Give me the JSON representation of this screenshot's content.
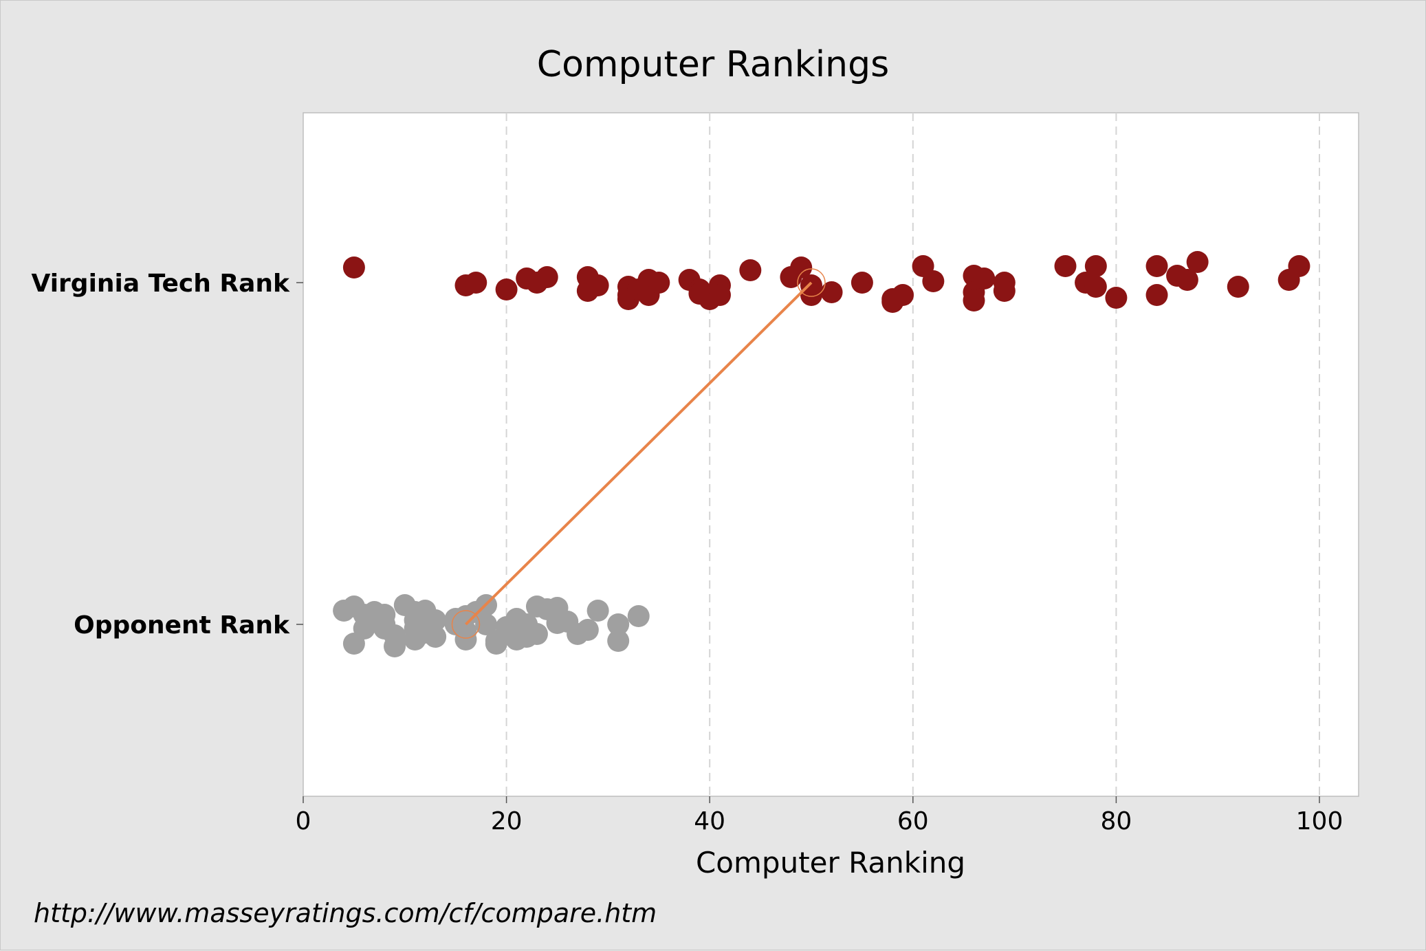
{
  "chart_data": {
    "type": "scatter",
    "title": "Computer Rankings",
    "xlabel": "Computer Ranking",
    "ylabel": "",
    "xlim": [
      0,
      104
    ],
    "xticks": [
      "0",
      "20",
      "40",
      "60",
      "80",
      "100"
    ],
    "grid": "vertical dashed",
    "categories": [
      "Virginia Tech Rank",
      "Opponent Rank"
    ],
    "series": [
      {
        "category": "Virginia Tech Rank",
        "color": "#8b1414",
        "points": [
          {
            "x": 5,
            "j": 1.1
          },
          {
            "x": 16,
            "j": -0.2
          },
          {
            "x": 17,
            "j": 0.0
          },
          {
            "x": 20,
            "j": -0.5
          },
          {
            "x": 22,
            "j": 0.3
          },
          {
            "x": 23,
            "j": 0.0
          },
          {
            "x": 24,
            "j": 0.4
          },
          {
            "x": 28,
            "j": 0.4
          },
          {
            "x": 28,
            "j": -0.6
          },
          {
            "x": 29,
            "j": -0.2
          },
          {
            "x": 32,
            "j": -0.3
          },
          {
            "x": 32,
            "j": -0.9
          },
          {
            "x": 32,
            "j": -1.2
          },
          {
            "x": 33,
            "j": -0.5
          },
          {
            "x": 34,
            "j": 0.2
          },
          {
            "x": 34,
            "j": -0.9
          },
          {
            "x": 35,
            "j": 0.0
          },
          {
            "x": 38,
            "j": 0.2
          },
          {
            "x": 39,
            "j": -0.5
          },
          {
            "x": 39,
            "j": -0.8
          },
          {
            "x": 40,
            "j": -1.2
          },
          {
            "x": 41,
            "j": -0.2
          },
          {
            "x": 41,
            "j": -0.9
          },
          {
            "x": 44,
            "j": 0.9
          },
          {
            "x": 48,
            "j": 0.4
          },
          {
            "x": 49,
            "j": 1.1
          },
          {
            "x": 50,
            "j": -0.2
          },
          {
            "x": 50,
            "j": -0.9
          },
          {
            "x": 52,
            "j": -0.7
          },
          {
            "x": 55,
            "j": 0.0
          },
          {
            "x": 58,
            "j": -1.2
          },
          {
            "x": 58,
            "j": -1.4
          },
          {
            "x": 59,
            "j": -0.9
          },
          {
            "x": 61,
            "j": 1.2
          },
          {
            "x": 62,
            "j": 0.1
          },
          {
            "x": 66,
            "j": 0.5
          },
          {
            "x": 66,
            "j": -0.7
          },
          {
            "x": 66,
            "j": -1.3
          },
          {
            "x": 67,
            "j": 0.3
          },
          {
            "x": 69,
            "j": 0.0
          },
          {
            "x": 69,
            "j": -0.6
          },
          {
            "x": 75,
            "j": 1.2
          },
          {
            "x": 77,
            "j": 0.0
          },
          {
            "x": 78,
            "j": 1.2
          },
          {
            "x": 78,
            "j": -0.3
          },
          {
            "x": 80,
            "j": -1.1
          },
          {
            "x": 84,
            "j": 1.2
          },
          {
            "x": 84,
            "j": -0.9
          },
          {
            "x": 86,
            "j": 0.5
          },
          {
            "x": 87,
            "j": 0.2
          },
          {
            "x": 88,
            "j": 1.5
          },
          {
            "x": 92,
            "j": -0.3
          },
          {
            "x": 97,
            "j": 0.2
          },
          {
            "x": 98,
            "j": 1.2
          }
        ]
      },
      {
        "category": "Opponent Rank",
        "color": "#a0a0a0",
        "points": [
          {
            "x": 4,
            "j": 1.0
          },
          {
            "x": 5,
            "j": 1.3
          },
          {
            "x": 5,
            "j": -1.4
          },
          {
            "x": 6,
            "j": 0.7
          },
          {
            "x": 6,
            "j": -0.3
          },
          {
            "x": 7,
            "j": 0.9
          },
          {
            "x": 7,
            "j": 0.2
          },
          {
            "x": 8,
            "j": 0.7
          },
          {
            "x": 8,
            "j": 0.0
          },
          {
            "x": 8,
            "j": -0.3
          },
          {
            "x": 9,
            "j": -0.8
          },
          {
            "x": 9,
            "j": -1.6
          },
          {
            "x": 10,
            "j": 1.4
          },
          {
            "x": 11,
            "j": 0.9
          },
          {
            "x": 11,
            "j": 0.3
          },
          {
            "x": 11,
            "j": -0.3
          },
          {
            "x": 11,
            "j": -1.1
          },
          {
            "x": 12,
            "j": 1.0
          },
          {
            "x": 12,
            "j": 0.0
          },
          {
            "x": 12,
            "j": -0.6
          },
          {
            "x": 13,
            "j": 0.3
          },
          {
            "x": 13,
            "j": -0.9
          },
          {
            "x": 15,
            "j": 0.0
          },
          {
            "x": 15,
            "j": 0.4
          },
          {
            "x": 16,
            "j": 0.6
          },
          {
            "x": 16,
            "j": -0.5
          },
          {
            "x": 16,
            "j": -1.1
          },
          {
            "x": 17,
            "j": 0.9
          },
          {
            "x": 18,
            "j": 1.4
          },
          {
            "x": 18,
            "j": 0.0
          },
          {
            "x": 19,
            "j": -1.2
          },
          {
            "x": 19,
            "j": -1.4
          },
          {
            "x": 20,
            "j": -0.2
          },
          {
            "x": 21,
            "j": 0.4
          },
          {
            "x": 21,
            "j": -0.3
          },
          {
            "x": 21,
            "j": -1.1
          },
          {
            "x": 22,
            "j": 0.0
          },
          {
            "x": 22,
            "j": -0.6
          },
          {
            "x": 22,
            "j": -0.9
          },
          {
            "x": 23,
            "j": 1.3
          },
          {
            "x": 23,
            "j": -0.7
          },
          {
            "x": 24,
            "j": 1.1
          },
          {
            "x": 25,
            "j": 1.2
          },
          {
            "x": 25,
            "j": 0.1
          },
          {
            "x": 26,
            "j": 0.2
          },
          {
            "x": 27,
            "j": -0.7
          },
          {
            "x": 28,
            "j": -0.4
          },
          {
            "x": 29,
            "j": 1.0
          },
          {
            "x": 31,
            "j": 0.0
          },
          {
            "x": 31,
            "j": -1.2
          },
          {
            "x": 33,
            "j": 0.6
          }
        ]
      }
    ],
    "highlight_link": {
      "color": "#e8844a",
      "from": {
        "category": "Virginia Tech Rank",
        "x": 50
      },
      "to": {
        "category": "Opponent Rank",
        "x": 16
      }
    }
  },
  "source_note": "http://www.masseyratings.com/cf/compare.htm"
}
